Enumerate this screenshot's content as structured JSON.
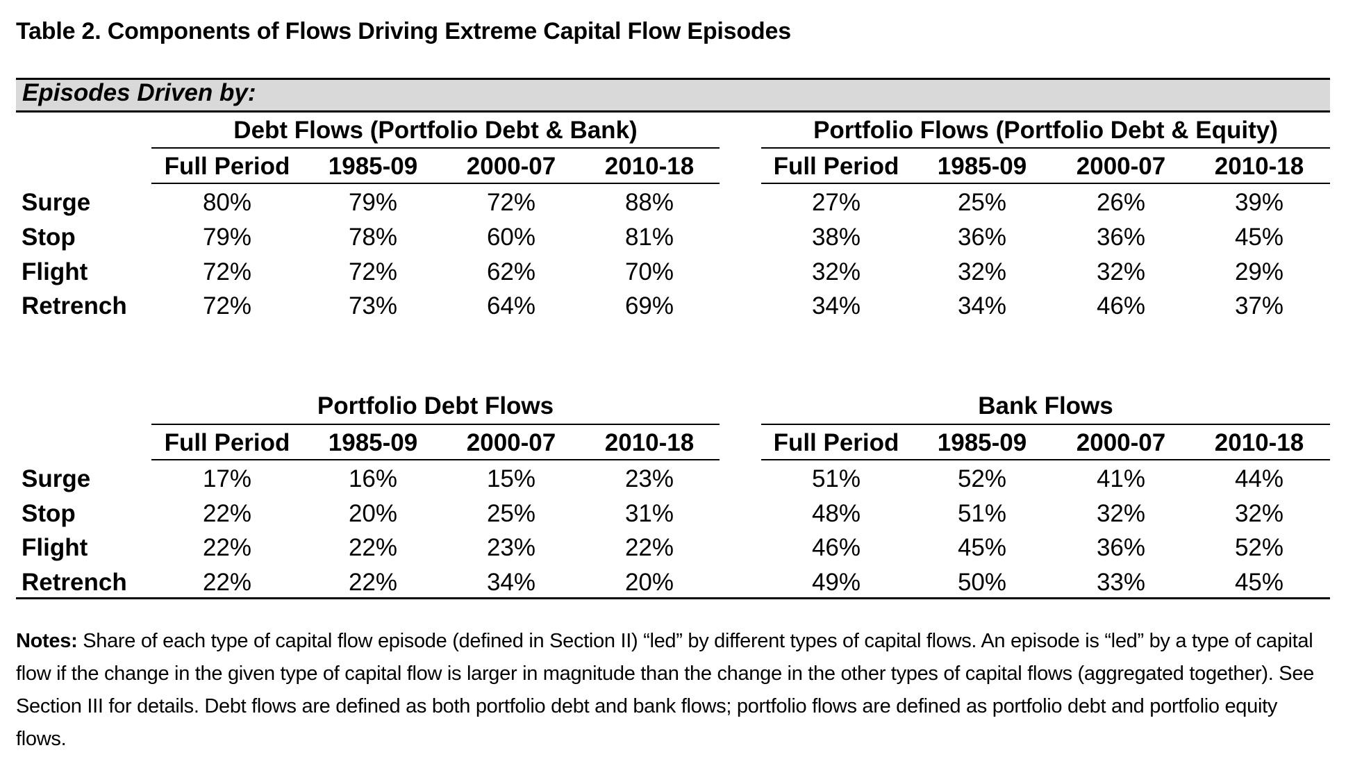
{
  "title": "Table 2. Components of Flows Driving Extreme Capital Flow Episodes",
  "band_label": "Episodes Driven by:",
  "column_headers": [
    "Full Period",
    "1985-09",
    "2000-07",
    "2010-18"
  ],
  "row_labels": [
    "Surge",
    "Stop",
    "Flight",
    "Retrench"
  ],
  "panels": [
    {
      "title": "Debt Flows (Portfolio Debt & Bank)",
      "rows": [
        [
          "80%",
          "79%",
          "72%",
          "88%"
        ],
        [
          "79%",
          "78%",
          "60%",
          "81%"
        ],
        [
          "72%",
          "72%",
          "62%",
          "70%"
        ],
        [
          "72%",
          "73%",
          "64%",
          "69%"
        ]
      ]
    },
    {
      "title": "Portfolio Flows (Portfolio Debt & Equity)",
      "rows": [
        [
          "27%",
          "25%",
          "26%",
          "39%"
        ],
        [
          "38%",
          "36%",
          "36%",
          "45%"
        ],
        [
          "32%",
          "32%",
          "32%",
          "29%"
        ],
        [
          "34%",
          "34%",
          "46%",
          "37%"
        ]
      ]
    },
    {
      "title": "Portfolio Debt Flows",
      "rows": [
        [
          "17%",
          "16%",
          "15%",
          "23%"
        ],
        [
          "22%",
          "20%",
          "25%",
          "31%"
        ],
        [
          "22%",
          "22%",
          "23%",
          "22%"
        ],
        [
          "22%",
          "22%",
          "34%",
          "20%"
        ]
      ]
    },
    {
      "title": "Bank Flows",
      "rows": [
        [
          "51%",
          "52%",
          "41%",
          "44%"
        ],
        [
          "48%",
          "51%",
          "32%",
          "32%"
        ],
        [
          "46%",
          "45%",
          "36%",
          "52%"
        ],
        [
          "49%",
          "50%",
          "33%",
          "45%"
        ]
      ]
    }
  ],
  "notes": {
    "label": "Notes:",
    "text": " Share of each type of capital flow episode (defined in Section II) “led” by different types of capital flows. An episode is “led” by a type of capital flow if the change in the given type of capital flow is larger in magnitude than the change in the other types of capital flows (aggregated together).  See Section III for details. Debt flows are defined as both portfolio debt and bank flows; portfolio flows are defined as portfolio debt and portfolio equity flows."
  }
}
